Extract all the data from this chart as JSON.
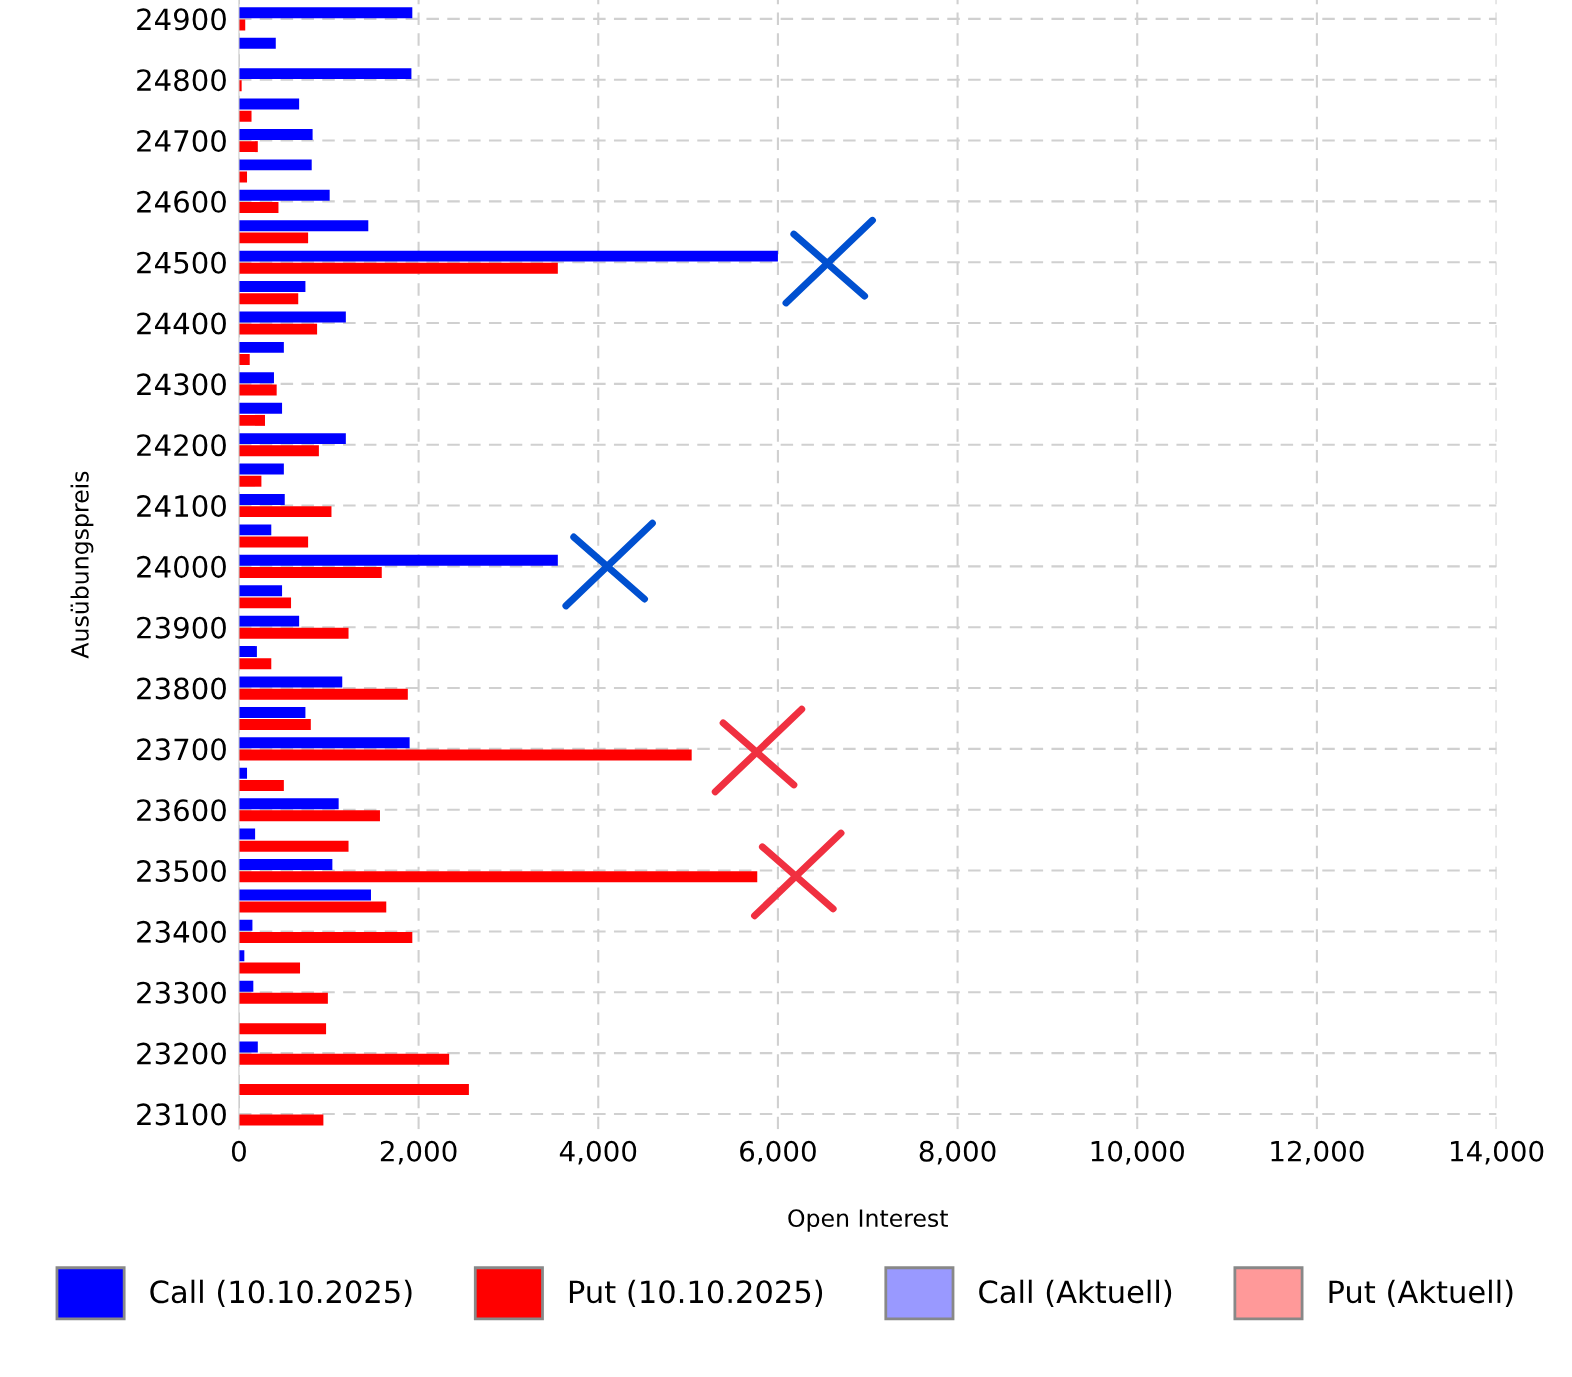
{
  "chart_data": {
    "type": "bar",
    "orientation": "horizontal",
    "xlabel": "Open Interest",
    "ylabel": "Ausübungspreis",
    "categories": [
      "24900",
      null,
      "24800",
      null,
      "24700",
      null,
      "24600",
      null,
      "24500",
      null,
      "24400",
      null,
      "24300",
      null,
      "24200",
      null,
      "24100",
      null,
      "24000",
      null,
      "23900",
      null,
      "23800",
      null,
      "23700",
      null,
      "23600",
      null,
      "23500",
      null,
      "23400",
      null,
      "23300",
      null,
      "23200",
      null,
      "23100"
    ],
    "series": [
      {
        "name": "Call (10.10.2025)",
        "color": "#0000ff",
        "values": [
          1930,
          410,
          1920,
          670,
          820,
          810,
          1010,
          1440,
          6000,
          740,
          1190,
          500,
          390,
          480,
          1190,
          500,
          510,
          360,
          3550,
          480,
          670,
          200,
          1150,
          740,
          1900,
          90,
          1110,
          180,
          1040,
          1470,
          150,
          60,
          160,
          null,
          210,
          0,
          null
        ]
      },
      {
        "name": "Put (10.10.2025)",
        "color": "#ff0000",
        "values": [
          70,
          null,
          30,
          140,
          210,
          90,
          440,
          770,
          3550,
          660,
          870,
          120,
          420,
          290,
          890,
          250,
          1030,
          770,
          1590,
          580,
          1220,
          360,
          1880,
          800,
          5040,
          500,
          1570,
          1220,
          5770,
          1640,
          1930,
          680,
          990,
          970,
          2340,
          2560,
          940
        ]
      },
      {
        "name": "Call (Aktuell)",
        "color": "#9999ff",
        "values": [
          null,
          null,
          null,
          null,
          null,
          null,
          null,
          null,
          null,
          null,
          null,
          null,
          null,
          null,
          null,
          null,
          null,
          null,
          null,
          null,
          null,
          null,
          null,
          null,
          null,
          null,
          null,
          null,
          null,
          null,
          null,
          null,
          null,
          null,
          null,
          null,
          null
        ]
      },
      {
        "name": "Put (Aktuell)",
        "color": "#ff9999",
        "values": [
          null,
          null,
          null,
          null,
          null,
          null,
          null,
          null,
          null,
          null,
          null,
          null,
          null,
          null,
          null,
          null,
          null,
          null,
          null,
          null,
          null,
          null,
          null,
          null,
          null,
          null,
          null,
          null,
          null,
          null,
          null,
          null,
          null,
          null,
          null,
          null,
          null
        ]
      }
    ],
    "xlim": [
      0,
      14000
    ],
    "xticks": [
      0,
      {
        "value": 2000,
        "label": "2,000"
      },
      {
        "value": 4000,
        "label": "4,000"
      },
      {
        "value": 6000,
        "label": "6,000"
      },
      {
        "value": 8000,
        "label": "8,000"
      },
      {
        "value": 10000,
        "label": "10,000"
      },
      {
        "value": 12000,
        "label": "12,000"
      },
      {
        "value": 14000,
        "label": "14,000"
      }
    ],
    "grid": true,
    "legend": "bottom"
  }
}
